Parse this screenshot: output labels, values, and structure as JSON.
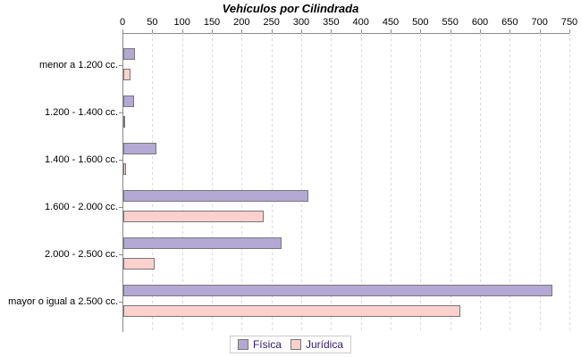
{
  "chart_data": {
    "type": "bar",
    "orientation": "horizontal",
    "title": "Vehículos por Cilindrada",
    "categories": [
      "menor a 1.200 cc.",
      "1.200 - 1.400 cc.",
      "1.400 - 1.600 cc.",
      "1.600 - 2.000 cc.",
      "2.000 - 2.500 cc.",
      "mayor o igual a 2.500 cc."
    ],
    "series": [
      {
        "name": "Física",
        "color": "#b3a9d4",
        "values": [
          20,
          18,
          55,
          310,
          265,
          720
        ]
      },
      {
        "name": "Jurídica",
        "color": "#fcd1cd",
        "values": [
          12,
          3,
          5,
          235,
          52,
          565
        ]
      }
    ],
    "xlim": [
      0,
      750
    ],
    "x_ticks": [
      0,
      50,
      100,
      150,
      200,
      250,
      300,
      350,
      400,
      450,
      500,
      550,
      600,
      650,
      700,
      750
    ],
    "grid": "dashed-vertical",
    "legend_position": "bottom",
    "axis_position": "top"
  }
}
